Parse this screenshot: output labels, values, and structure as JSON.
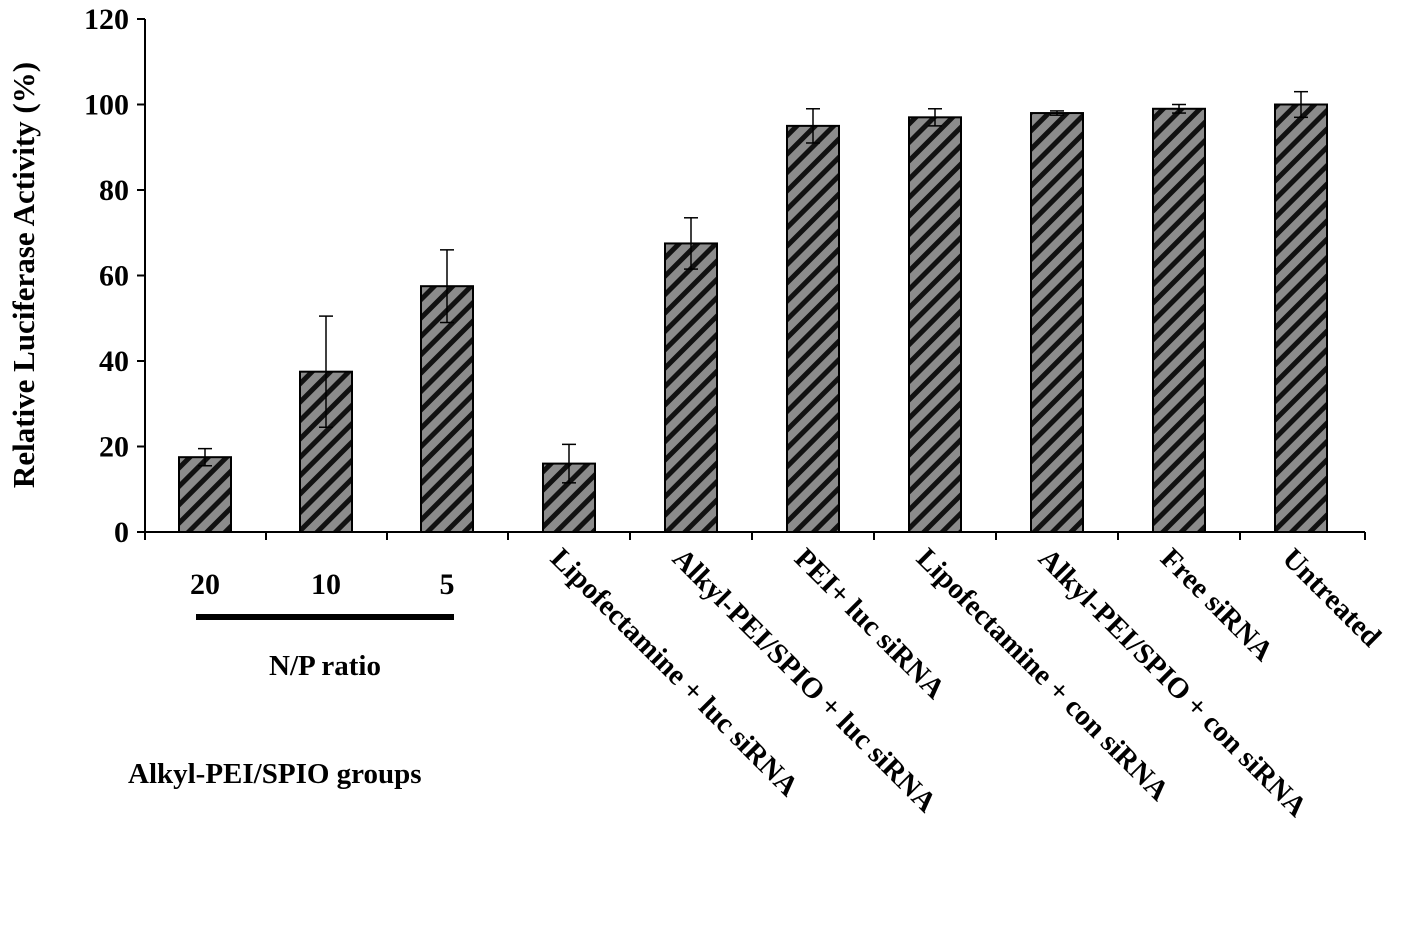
{
  "chart_data": {
    "type": "bar",
    "title": "",
    "xlabel": "",
    "ylabel": "Relative Luciferase Activity (%)",
    "ylim": [
      0,
      120
    ],
    "yticks": [
      0,
      20,
      40,
      60,
      80,
      100,
      120
    ],
    "grid": false,
    "legend": "none",
    "categories": [
      "20",
      "10",
      "5",
      "Lipofectamine + luc siRNA",
      "Alkyl-PEI/SPIO + luc siRNA",
      "PEI+ luc siRNA",
      "Lipofectamine + con siRNA",
      "Alkyl-PEI/SPIO + con siRNA",
      "Free siRNA",
      "Untreated"
    ],
    "values": [
      17.5,
      37.5,
      57.5,
      16,
      67.5,
      95,
      97,
      98,
      99,
      100
    ],
    "errors": [
      2,
      13,
      8.5,
      4.5,
      6,
      4,
      2,
      0.5,
      1,
      3
    ],
    "annotations": {
      "np_ratio_label": "N/P ratio",
      "group_label": "Alkyl-PEI/SPIO groups"
    },
    "colors": {
      "bar_fill": "#8c8c8c",
      "hatch": "#111111",
      "axis": "#000000"
    }
  }
}
